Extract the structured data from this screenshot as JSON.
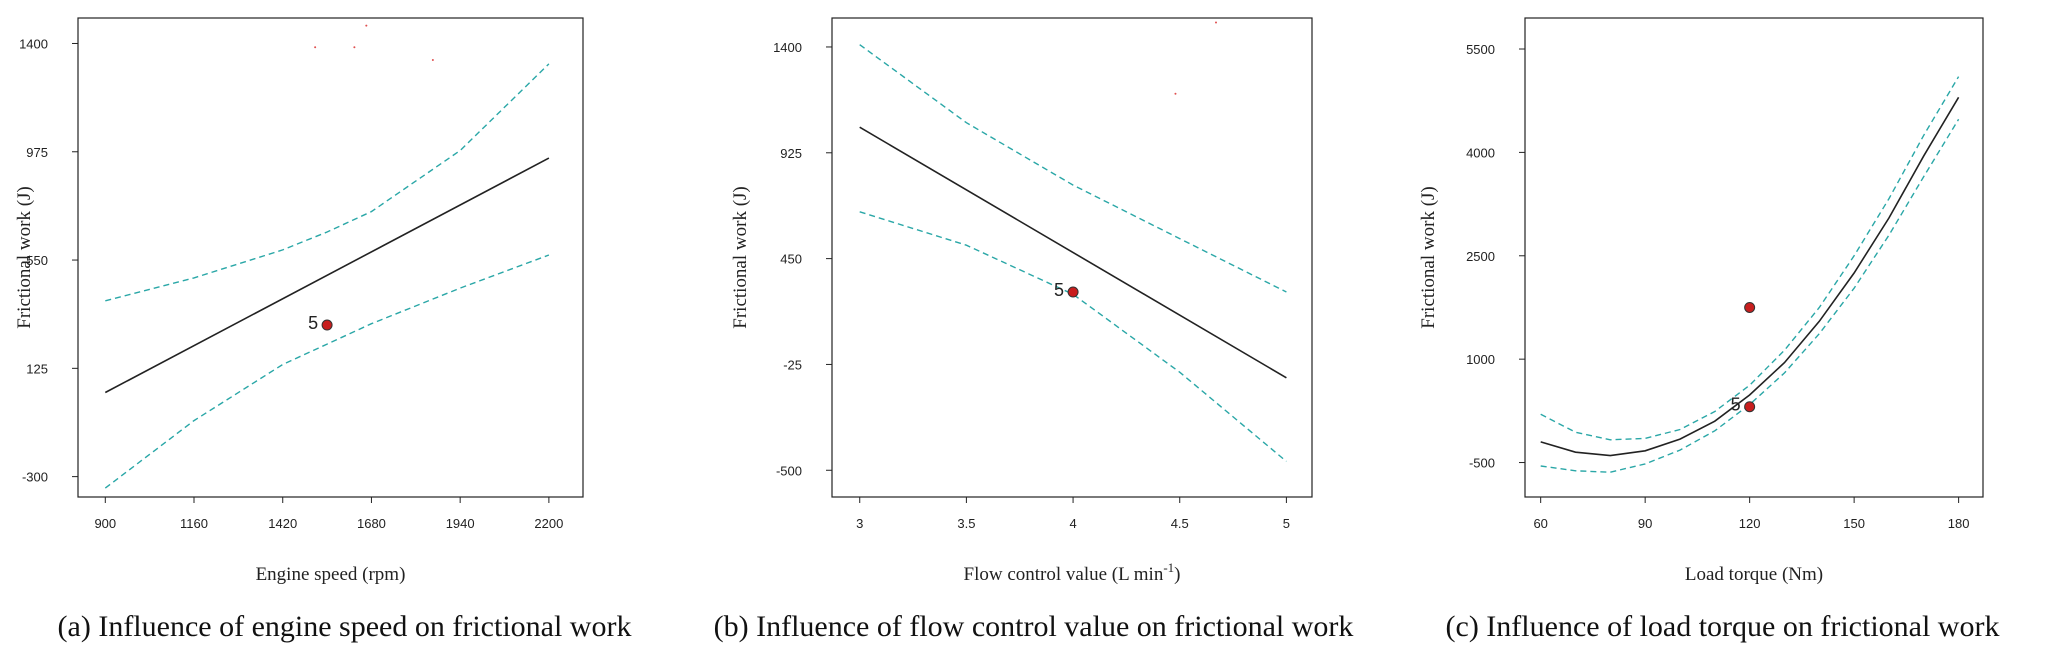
{
  "chart_data": [
    {
      "type": "line",
      "caption": "(a) Influence of engine speed on frictional work",
      "xlabel": "Engine speed  (rpm)",
      "ylabel": "Frictional work  (J)",
      "xlim": [
        820,
        2300
      ],
      "ylim": [
        -380,
        1500
      ],
      "xticks": [
        900,
        1160,
        1420,
        1680,
        1940,
        2200
      ],
      "yticks": [
        -300,
        125,
        550,
        975,
        1400
      ],
      "series": [
        {
          "role": "prediction",
          "color": "#222222",
          "dashed": false,
          "x": [
            900,
            2200
          ],
          "y": [
            30,
            950
          ]
        },
        {
          "role": "upper-ci",
          "color": "#2aa7a7",
          "dashed": true,
          "x": [
            900,
            1160,
            1420,
            1550,
            1680,
            1940,
            2200
          ],
          "y": [
            390,
            480,
            590,
            660,
            740,
            980,
            1320
          ]
        },
        {
          "role": "lower-ci",
          "color": "#2aa7a7",
          "dashed": true,
          "x": [
            900,
            1160,
            1420,
            1550,
            1680,
            1940,
            2200
          ],
          "y": [
            -345,
            -80,
            140,
            220,
            300,
            440,
            570
          ]
        }
      ],
      "points": [
        {
          "x": 1550,
          "y": 295,
          "label": "5"
        }
      ],
      "specks": [
        {
          "x": 1515,
          "y": 1385
        },
        {
          "x": 1630,
          "y": 1385
        },
        {
          "x": 1860,
          "y": 1335
        },
        {
          "x": 1665,
          "y": 1470
        }
      ]
    },
    {
      "type": "line",
      "caption": "(b) Influence of flow control value on frictional work",
      "xlabel": "Flow control value  (L min",
      "xlabel_sup": "-1",
      "xlabel_end": ")",
      "ylabel": "Frictional work  (J)",
      "xlim": [
        2.87,
        5.12
      ],
      "ylim": [
        -620,
        1530
      ],
      "xticks": [
        "3",
        "3.5",
        "4",
        "4.5",
        "5"
      ],
      "xtick_values": [
        3,
        3.5,
        4,
        4.5,
        5
      ],
      "yticks": [
        -500,
        -25,
        450,
        925,
        1400
      ],
      "series": [
        {
          "role": "prediction",
          "color": "#222222",
          "dashed": false,
          "x": [
            3,
            5
          ],
          "y": [
            1040,
            -85
          ]
        },
        {
          "role": "upper-ci",
          "color": "#2aa7a7",
          "dashed": true,
          "x": [
            3,
            3.5,
            4,
            4.5,
            5
          ],
          "y": [
            1410,
            1060,
            780,
            540,
            300
          ]
        },
        {
          "role": "lower-ci",
          "color": "#2aa7a7",
          "dashed": true,
          "x": [
            3,
            3.5,
            4,
            4.5,
            5
          ],
          "y": [
            660,
            510,
            290,
            -60,
            -460
          ]
        }
      ],
      "points": [
        {
          "x": 4.0,
          "y": 300,
          "label": "5"
        }
      ],
      "specks": [
        {
          "x": 4.67,
          "y": 1510
        },
        {
          "x": 4.48,
          "y": 1190
        }
      ]
    },
    {
      "type": "line",
      "caption": "(c) Influence of load torque on frictional work",
      "xlabel": "Load torque  (Nm)",
      "ylabel": "Frictional work  (J)",
      "xlim": [
        55.5,
        187
      ],
      "ylim": [
        -1000,
        5950
      ],
      "xticks": [
        60,
        90,
        120,
        150,
        180
      ],
      "yticks": [
        -500,
        1000,
        2500,
        4000,
        5500
      ],
      "series": [
        {
          "role": "prediction",
          "color": "#222222",
          "dashed": false,
          "x": [
            60,
            70,
            80,
            90,
            100,
            110,
            120,
            130,
            140,
            150,
            160,
            170,
            180
          ],
          "y": [
            -200,
            -350,
            -400,
            -330,
            -160,
            100,
            480,
            950,
            1550,
            2250,
            3050,
            3950,
            4800
          ]
        },
        {
          "role": "upper-ci",
          "color": "#2aa7a7",
          "dashed": true,
          "x": [
            60,
            70,
            80,
            90,
            100,
            110,
            120,
            130,
            140,
            150,
            160,
            170,
            180
          ],
          "y": [
            200,
            -60,
            -170,
            -150,
            -20,
            240,
            620,
            1130,
            1750,
            2500,
            3330,
            4250,
            5100
          ]
        },
        {
          "role": "lower-ci",
          "color": "#2aa7a7",
          "dashed": true,
          "x": [
            60,
            70,
            80,
            90,
            100,
            110,
            120,
            130,
            140,
            150,
            160,
            170,
            180
          ],
          "y": [
            -550,
            -620,
            -640,
            -520,
            -320,
            -40,
            340,
            800,
            1370,
            2030,
            2800,
            3650,
            4480
          ]
        }
      ],
      "points": [
        {
          "x": 120,
          "y": 1750,
          "label": ""
        },
        {
          "x": 120,
          "y": 310,
          "label": "5"
        }
      ],
      "specks": []
    }
  ]
}
